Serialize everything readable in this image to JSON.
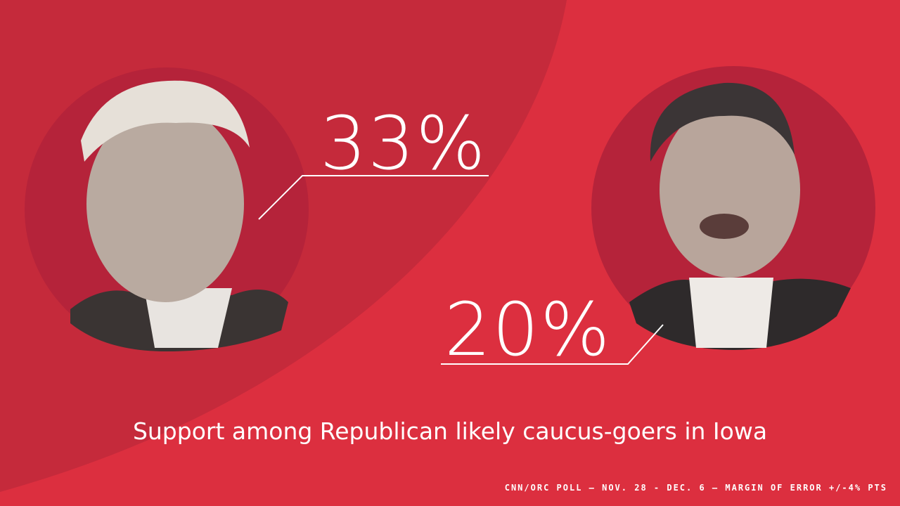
{
  "candidates": [
    {
      "value": "33%"
    },
    {
      "value": "20%"
    }
  ],
  "caption": "Support among Republican likely caucus-goers in Iowa",
  "source": "CNN/ORC POLL — NOV. 28 - DEC. 6 — MARGIN OF ERROR +/-4% PTS"
}
